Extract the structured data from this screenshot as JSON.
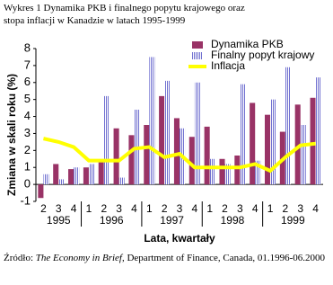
{
  "chart_data": {
    "type": "bar_line",
    "title": "Wykres 1 Dynamika PKB i finalnego popytu krajowego oraz stopa inflacji w Kanadzie w latach 1995-1999",
    "ylabel": "Zmiana w skali roku (%)",
    "xlabel": "Lata, kwartały",
    "source": [
      "Źródło: ",
      "The Economy in Brief",
      ", Department of Finance, Canada, 01.1996-06.2000"
    ],
    "categories": [
      "2",
      "3",
      "4",
      "1",
      "2",
      "3",
      "4",
      "1",
      "2",
      "3",
      "4",
      "1",
      "2",
      "3",
      "4",
      "1",
      "2",
      "3",
      "4"
    ],
    "years": [
      "1995",
      "1996",
      "1997",
      "1998",
      "1999"
    ],
    "series": [
      {
        "name": "Dynamika PKB",
        "color": "#993366",
        "kind": "bar",
        "values": [
          -0.8,
          1.2,
          0.9,
          1.0,
          1.3,
          3.3,
          2.9,
          3.5,
          5.2,
          3.9,
          2.8,
          3.4,
          1.5,
          1.7,
          4.8,
          4.1,
          3.1,
          4.7,
          5.1
        ]
      },
      {
        "name": "Finalny popyt krajowy",
        "color": "#7070d0",
        "kind": "striped-bar",
        "values": [
          0.6,
          0.3,
          1.0,
          1.2,
          5.2,
          0.4,
          4.4,
          7.5,
          6.1,
          3.3,
          6.0,
          1.5,
          1.2,
          5.9,
          1.4,
          5.0,
          6.9,
          3.5,
          6.3
        ]
      },
      {
        "name": "Inflacja",
        "color": "#ffff00",
        "kind": "line",
        "values": [
          2.7,
          2.5,
          2.2,
          1.4,
          1.4,
          1.4,
          2.1,
          2.2,
          1.6,
          1.8,
          1.0,
          1.0,
          1.0,
          1.0,
          1.2,
          0.8,
          1.6,
          2.3,
          2.4
        ]
      }
    ],
    "ylim": [
      -1,
      8
    ],
    "yticks": [
      -1,
      0,
      1,
      2,
      3,
      4,
      5,
      6,
      7,
      8
    ],
    "grid": false,
    "legend": "top-right"
  }
}
